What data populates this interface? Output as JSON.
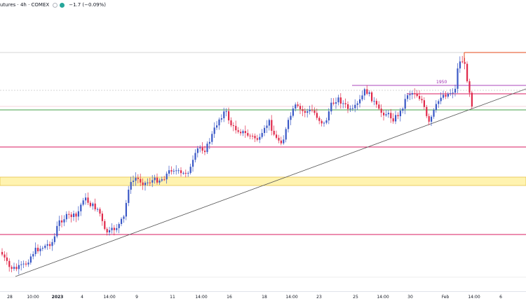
{
  "header": {
    "title": "utures · 4h · COMEX",
    "change": "−1.7 (−0.09%)",
    "icons": [
      "visibility-icon",
      "status-dot-icon"
    ]
  },
  "colors": {
    "up": "#3a58c6",
    "down": "#e0294a",
    "trendline": "#555555",
    "support_zone": "#fff3b0",
    "support_zone_border": "#e6c24a",
    "level_red": "#d81b60",
    "level_green": "#43a047",
    "level_orange": "#e64a19",
    "level_purple": "#ab47bc",
    "dotted": "#c8c8c8"
  },
  "levels": {
    "label_1950": "1950"
  },
  "x_axis": {
    "ticks": [
      {
        "label": "28",
        "bold": false
      },
      {
        "label": "10:00",
        "bold": false
      },
      {
        "label": "2023",
        "bold": true
      },
      {
        "label": "4",
        "bold": false
      },
      {
        "label": "14:00",
        "bold": false
      },
      {
        "label": "9",
        "bold": false
      },
      {
        "label": "11",
        "bold": false
      },
      {
        "label": "14:00",
        "bold": false
      },
      {
        "label": "16",
        "bold": false
      },
      {
        "label": "18",
        "bold": false
      },
      {
        "label": "14:00",
        "bold": false
      },
      {
        "label": "23",
        "bold": false
      },
      {
        "label": "25",
        "bold": false
      },
      {
        "label": "14:00",
        "bold": false
      },
      {
        "label": "30",
        "bold": false
      },
      {
        "label": "Feb",
        "bold": false
      },
      {
        "label": "14:00",
        "bold": false
      },
      {
        "label": "6",
        "bold": false
      }
    ]
  }
}
